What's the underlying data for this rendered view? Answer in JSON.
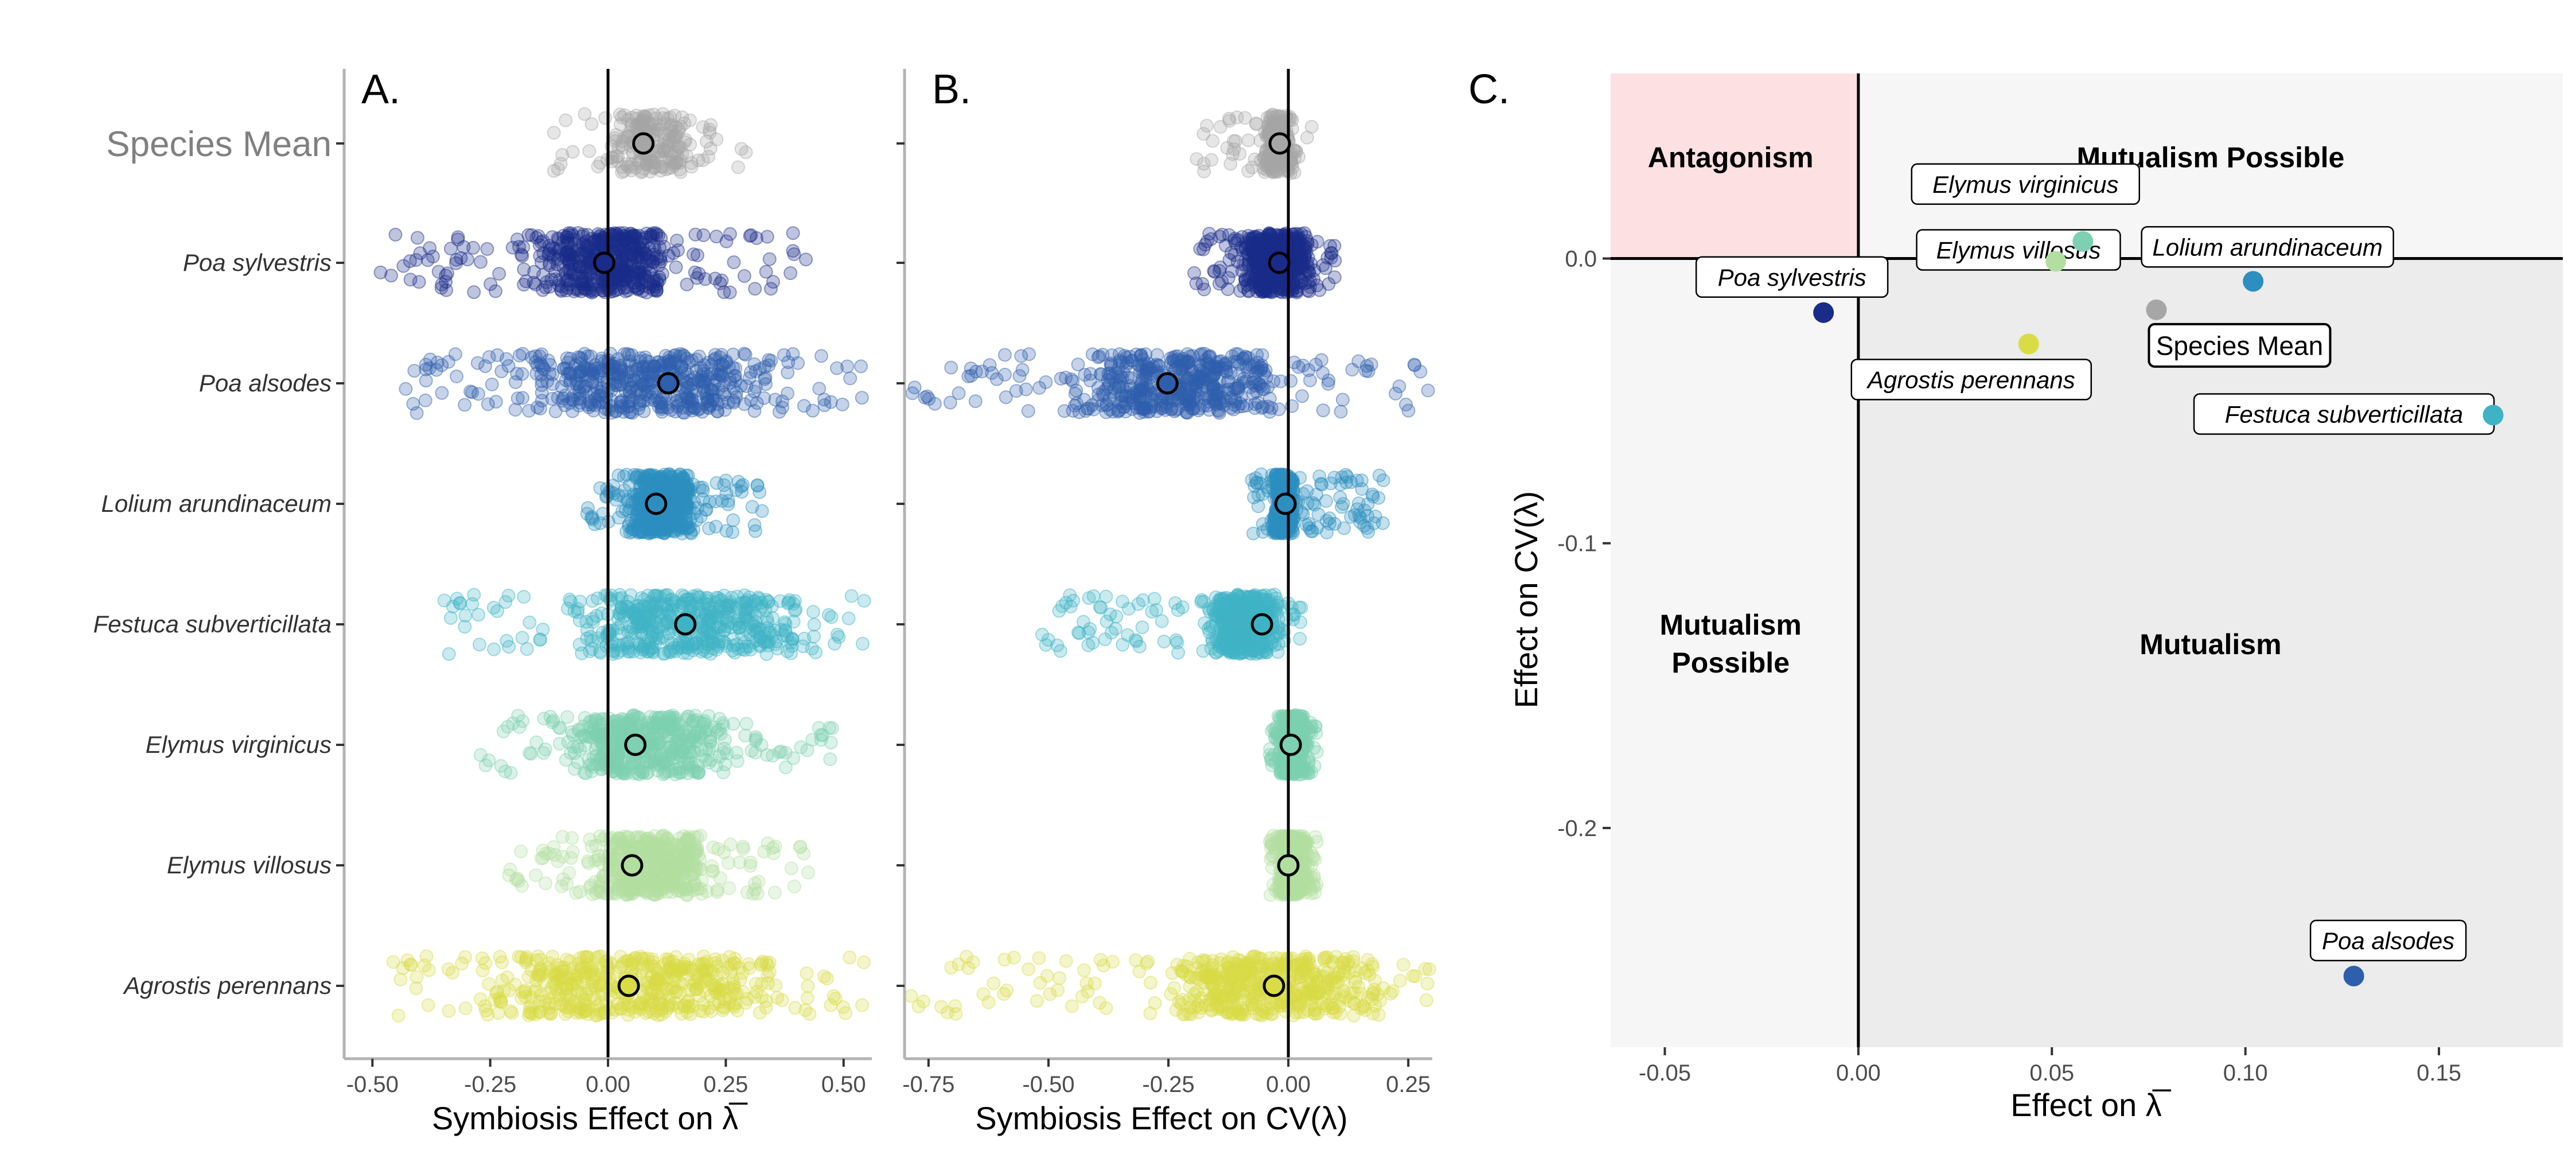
{
  "colors": {
    "Species Mean": "#a6a6a6",
    "Poa sylvestris": "#1a2c8a",
    "Poa alsodes": "#2e5fac",
    "Lolium arundinaceum": "#2c8fc0",
    "Festuca subverticillata": "#3fb3c6",
    "Elymus virginicus": "#7dd0b1",
    "Elymus villosus": "#b2dfa0",
    "Agrostis perennans": "#d9dc45",
    "antagonism_fill": "#fde0e2",
    "mutualism_fill": "#ececec",
    "possible_fill": "#f6f6f6"
  },
  "chart_data": [
    {
      "type": "scatter",
      "panel": "A.",
      "xlabel": "Symbiosis Effect on λ̅",
      "xlim": [
        -0.56,
        0.56
      ],
      "xticks": [
        -0.5,
        -0.25,
        0,
        0.25,
        0.5
      ],
      "xtick_labels": [
        "-0.50",
        "-0.25",
        "0.00",
        "0.25",
        "0.50"
      ],
      "categories": [
        "Species Mean",
        "Poa sylvestris",
        "Poa alsodes",
        "Lolium arundinaceum",
        "Festuca subverticillata",
        "Elymus virginicus",
        "Elymus villosus",
        "Agrostis perennans"
      ],
      "reference_line_x": 0,
      "means": [
        0.075,
        -0.008,
        0.128,
        0.102,
        0.164,
        0.058,
        0.051,
        0.044
      ],
      "spread": [
        {
          "core": [
            -0.03,
            0.22
          ],
          "tail": [
            -0.12,
            0.3
          ]
        },
        {
          "core": [
            -0.22,
            0.2
          ],
          "tail": [
            -0.49,
            0.43
          ]
        },
        {
          "core": [
            -0.28,
            0.45
          ],
          "tail": [
            -0.44,
            0.55
          ]
        },
        {
          "core": [
            0.01,
            0.22
          ],
          "tail": [
            -0.05,
            0.33
          ]
        },
        {
          "core": [
            -0.15,
            0.5
          ],
          "tail": [
            -0.36,
            0.55
          ]
        },
        {
          "core": [
            -0.16,
            0.34
          ],
          "tail": [
            -0.28,
            0.48
          ]
        },
        {
          "core": [
            -0.1,
            0.28
          ],
          "tail": [
            -0.22,
            0.43
          ]
        },
        {
          "core": [
            -0.38,
            0.48
          ],
          "tail": [
            -0.47,
            0.55
          ]
        }
      ]
    },
    {
      "type": "scatter",
      "panel": "B.",
      "xlabel": "Symbiosis Effect on CV(λ)",
      "xlim": [
        -0.8,
        0.3
      ],
      "xticks": [
        -0.75,
        -0.5,
        -0.25,
        0,
        0.25
      ],
      "xtick_labels": [
        "-0.75",
        "-0.50",
        "-0.25",
        "0.00",
        "0.25"
      ],
      "categories": [
        "Species Mean",
        "Poa sylvestris",
        "Poa alsodes",
        "Lolium arundinaceum",
        "Festuca subverticillata",
        "Elymus virginicus",
        "Elymus villosus",
        "Agrostis perennans"
      ],
      "reference_line_x": 0,
      "means": [
        -0.018,
        -0.019,
        -0.252,
        -0.006,
        -0.055,
        0.005,
        0.0,
        -0.03
      ],
      "spread": [
        {
          "core": [
            -0.07,
            0.03
          ],
          "tail": [
            -0.2,
            0.05
          ]
        },
        {
          "core": [
            -0.13,
            0.08
          ],
          "tail": [
            -0.2,
            0.1
          ]
        },
        {
          "core": [
            -0.55,
            0.1
          ],
          "tail": [
            -0.8,
            0.3
          ]
        },
        {
          "core": [
            -0.04,
            0.02
          ],
          "tail": [
            -0.08,
            0.2
          ]
        },
        {
          "core": [
            -0.2,
            0.02
          ],
          "tail": [
            -0.52,
            0.03
          ]
        },
        {
          "core": [
            -0.03,
            0.05
          ],
          "tail": [
            -0.04,
            0.06
          ]
        },
        {
          "core": [
            -0.03,
            0.05
          ],
          "tail": [
            -0.04,
            0.06
          ]
        },
        {
          "core": [
            -0.35,
            0.3
          ],
          "tail": [
            -0.8,
            0.3
          ]
        }
      ]
    },
    {
      "type": "scatter",
      "panel": "C.",
      "xlabel": "Effect on λ̅",
      "ylabel": "Effect on CV(λ)",
      "xlim": [
        -0.064,
        0.182
      ],
      "ylim": [
        -0.277,
        0.065
      ],
      "xticks": [
        -0.05,
        0,
        0.05,
        0.1,
        0.15
      ],
      "xtick_labels": [
        "-0.05",
        "0.00",
        "0.05",
        "0.10",
        "0.15"
      ],
      "yticks": [
        0,
        -0.1,
        -0.2
      ],
      "ytick_labels": [
        "0.0",
        "-0.1",
        "-0.2"
      ],
      "regions": [
        {
          "label": "Antagonism",
          "x": -0.033,
          "y": 0.032
        },
        {
          "label": "Mutualism Possible",
          "x": 0.091,
          "y": 0.032
        },
        {
          "label": "Mutualism\nPossible",
          "x": -0.033,
          "y": -0.139
        },
        {
          "label": "Mutualism",
          "x": 0.091,
          "y": -0.139
        }
      ],
      "points": [
        {
          "name": "Species Mean",
          "x": 0.077,
          "y": -0.018
        },
        {
          "name": "Poa sylvestris",
          "x": -0.009,
          "y": -0.019
        },
        {
          "name": "Poa alsodes",
          "x": 0.128,
          "y": -0.252
        },
        {
          "name": "Lolium arundinaceum",
          "x": 0.102,
          "y": -0.008
        },
        {
          "name": "Festuca subverticillata",
          "x": 0.164,
          "y": -0.055
        },
        {
          "name": "Elymus virginicus",
          "x": 0.058,
          "y": 0.006
        },
        {
          "name": "Elymus villosus",
          "x": 0.051,
          "y": -0.001
        },
        {
          "name": "Agrostis perennans",
          "x": 0.044,
          "y": -0.03
        }
      ]
    }
  ]
}
